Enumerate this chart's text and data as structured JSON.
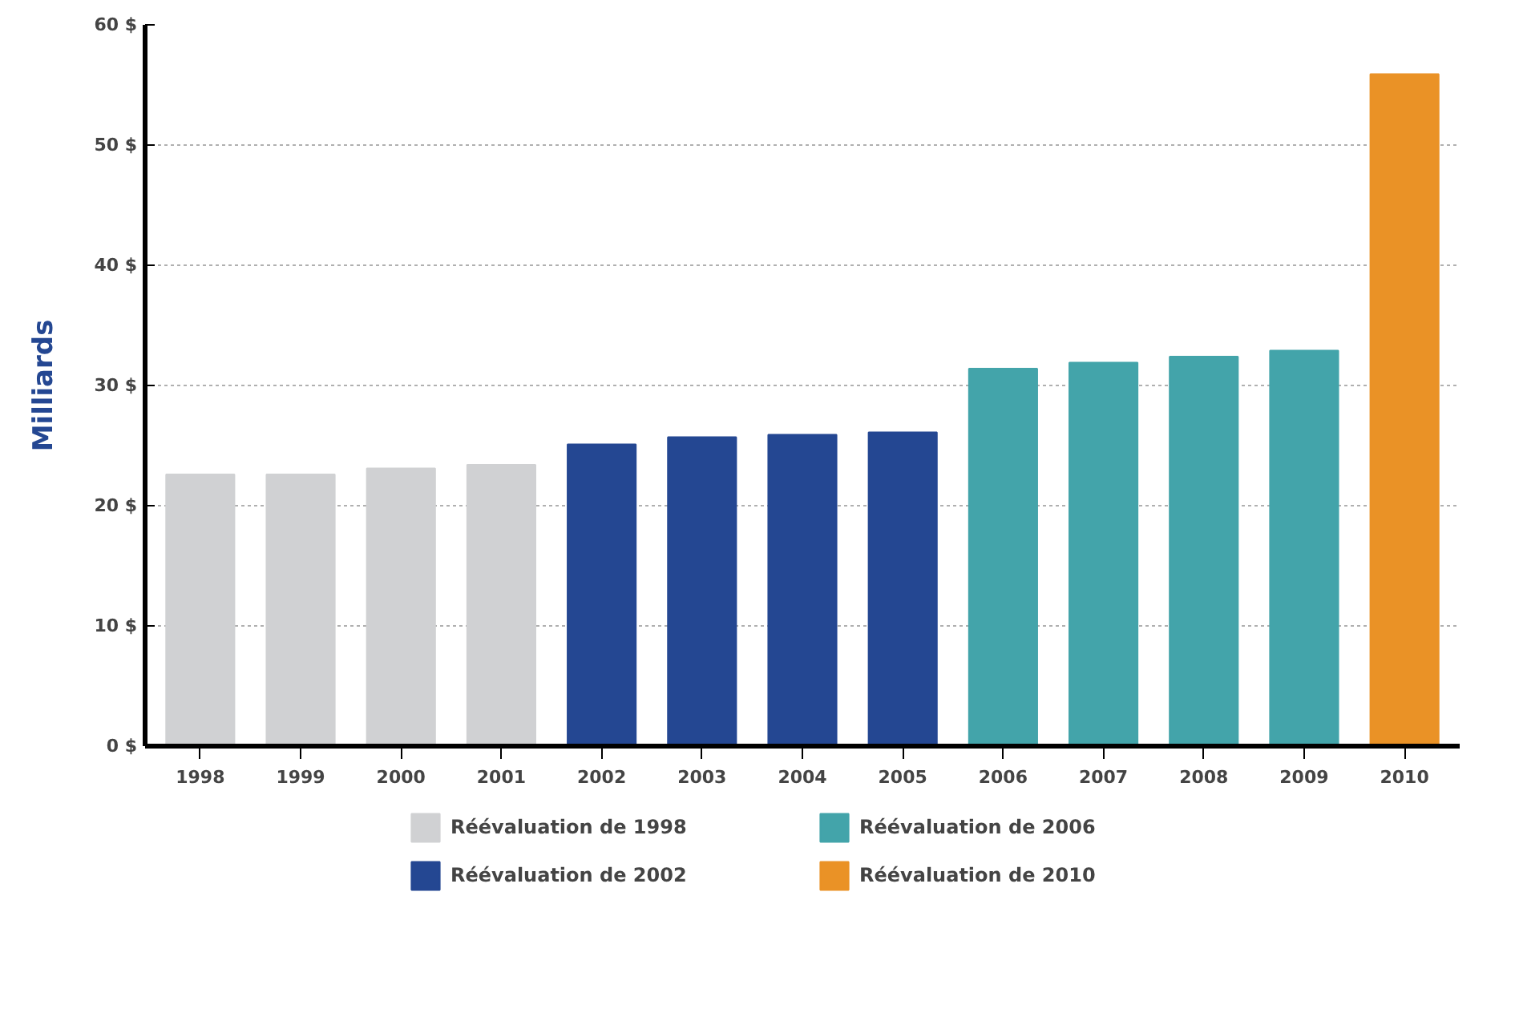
{
  "chart_data": {
    "type": "bar",
    "ylabel": "Milliards",
    "categories": [
      "1998",
      "1999",
      "2000",
      "2001",
      "2002",
      "2003",
      "2004",
      "2005",
      "2006",
      "2007",
      "2008",
      "2009",
      "2010"
    ],
    "series": [
      {
        "name": "Réévaluation de 1998",
        "color": "#d0d1d3",
        "values": [
          22.6,
          22.6,
          23.1,
          23.4,
          null,
          null,
          null,
          null,
          null,
          null,
          null,
          null,
          null
        ]
      },
      {
        "name": "Réévaluation de 2002",
        "color": "#244792",
        "values": [
          null,
          null,
          null,
          null,
          25.1,
          25.7,
          25.9,
          26.1,
          null,
          null,
          null,
          null,
          null
        ]
      },
      {
        "name": "Réévaluation de 2006",
        "color": "#43a4aa",
        "values": [
          null,
          null,
          null,
          null,
          null,
          null,
          null,
          null,
          31.4,
          31.9,
          32.4,
          32.9,
          null
        ]
      },
      {
        "name": "Réévaluation de 2010",
        "color": "#ea9226",
        "values": [
          null,
          null,
          null,
          null,
          null,
          null,
          null,
          null,
          null,
          null,
          null,
          null,
          55.9
        ]
      }
    ],
    "ylim": [
      0,
      60
    ],
    "yticks": [
      {
        "value": 0,
        "label": "0 $"
      },
      {
        "value": 10,
        "label": "10 $"
      },
      {
        "value": 20,
        "label": "20 $"
      },
      {
        "value": 30,
        "label": "30 $"
      },
      {
        "value": 40,
        "label": "40 $"
      },
      {
        "value": 50,
        "label": "50 $"
      },
      {
        "value": 60,
        "label": "60 $"
      }
    ],
    "grid": "y",
    "legend": "bottom"
  }
}
